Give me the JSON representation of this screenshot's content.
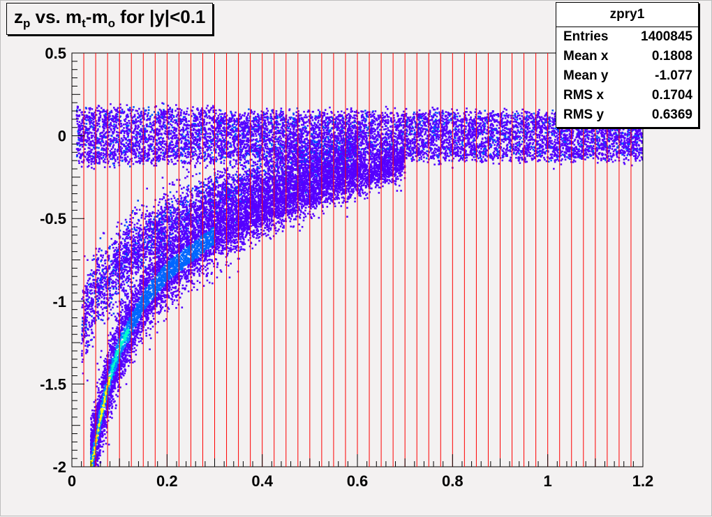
{
  "title": {
    "main": "z",
    "sub_p": "p",
    "mid": " vs. m",
    "sub_t": "t",
    "dash": "-m",
    "sub_o": "o",
    "tail": " for |y|<0.1"
  },
  "stats": {
    "name": "zpry1",
    "rows": [
      {
        "label": "Entries",
        "value": "1400845"
      },
      {
        "label": "Mean x",
        "value": "0.1808"
      },
      {
        "label": "Mean y",
        "value": "-1.077"
      },
      {
        "label": "RMS x",
        "value": "0.1704"
      },
      {
        "label": "RMS y",
        "value": "0.6369"
      }
    ]
  },
  "chart_data": {
    "type": "heatmap",
    "xlim": [
      0,
      1.2
    ],
    "ylim": [
      -2,
      0.5
    ],
    "x_ticks": [
      0,
      0.2,
      0.4,
      0.6,
      0.8,
      1,
      1.2
    ],
    "x_tick_labels": [
      "0",
      "0.2",
      "0.4",
      "0.6",
      "0.8",
      "1",
      "1.2"
    ],
    "y_ticks": [
      -2,
      -1.5,
      -1,
      -0.5,
      0,
      0.5
    ],
    "y_tick_labels": [
      "-2",
      "-1.5",
      "-1",
      "-0.5",
      "0",
      "0.5"
    ],
    "vertical_lines_x": [
      0.025,
      0.05,
      0.075,
      0.1,
      0.125,
      0.15,
      0.175,
      0.2,
      0.225,
      0.25,
      0.275,
      0.3,
      0.325,
      0.35,
      0.375,
      0.4,
      0.425,
      0.45,
      0.475,
      0.5,
      0.525,
      0.55,
      0.575,
      0.6,
      0.625,
      0.65,
      0.675,
      0.7,
      0.725,
      0.75,
      0.775,
      0.8,
      0.825,
      0.85,
      0.875,
      0.9,
      0.925,
      0.95,
      0.975,
      1.0,
      1.025,
      1.05,
      1.075,
      1.1,
      1.125,
      1.15,
      1.175
    ],
    "vertical_line_color": "#ff0000",
    "bands": [
      {
        "name": "",
        "description": "flat band",
        "x_range": [
          0.01,
          1.2
        ],
        "y_center": 0.0,
        "y_halfwidth": 0.15
      },
      {
        "name": "",
        "description": "upper curved band",
        "x_points": [
          0.02,
          0.05,
          0.1,
          0.15,
          0.2,
          0.3,
          0.4,
          0.5,
          0.6
        ],
        "y_points": [
          -1.15,
          -0.95,
          -0.78,
          -0.65,
          -0.55,
          -0.4,
          -0.28,
          -0.2,
          -0.12
        ]
      },
      {
        "name": "",
        "description": "lower dense curved band",
        "x_points": [
          0.04,
          0.06,
          0.08,
          0.1,
          0.15,
          0.2,
          0.3,
          0.4,
          0.5,
          0.6,
          0.7
        ],
        "y_points": [
          -2.0,
          -1.7,
          -1.45,
          -1.28,
          -1.0,
          -0.82,
          -0.6,
          -0.45,
          -0.33,
          -0.24,
          -0.15
        ]
      }
    ],
    "colors": {
      "low": "#5500ff",
      "mid": "#0088ff",
      "high": "#00ffcc",
      "peak": "#ffff00"
    }
  }
}
